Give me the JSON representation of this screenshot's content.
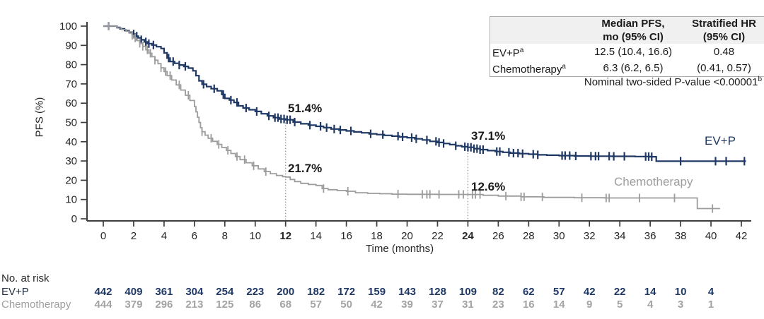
{
  "figure": {
    "y_axis_title": "PFS (%)",
    "x_axis_title": "Time (months)",
    "annotations": {
      "ev_12": "51.4%",
      "chemo_12": "21.7%",
      "ev_24": "37.1%",
      "chemo_24": "12.6%"
    },
    "curve_labels": {
      "ev_p": "EV+P",
      "chemo": "Chemotherapy"
    },
    "results_table": {
      "headers": [
        {
          "line1": "Median PFS,",
          "line2": "mo (95% CI)"
        },
        {
          "line1": "Stratified HR",
          "line2": "(95% CI)"
        }
      ],
      "rows": [
        {
          "label": "EV+P",
          "sup": "a",
          "median": "12.5 (10.4, 16.6)",
          "hr": "0.48"
        },
        {
          "label": "Chemotherapy",
          "sup": "a",
          "median": "6.3 (6.2, 6.5)",
          "hr": "(0.41, 0.57)"
        }
      ]
    },
    "pvalue_note": {
      "text": "Nominal two-sided P-value <0.00001",
      "sup": "b"
    },
    "at_risk_title": "No. at risk",
    "at_risk_row_labels": {
      "ev_p": "EV+P",
      "chemo": "Chemotherapy"
    }
  },
  "chart_data": {
    "type": "line",
    "subtype": "kaplan-meier-step",
    "title": "",
    "xlabel": "Time (months)",
    "ylabel": "PFS (%)",
    "xlim": [
      0,
      42
    ],
    "ylim": [
      0,
      100
    ],
    "xticks": [
      0,
      2,
      4,
      6,
      8,
      10,
      12,
      14,
      16,
      18,
      20,
      22,
      24,
      26,
      28,
      30,
      32,
      34,
      36,
      38,
      40,
      42
    ],
    "bold_xticks": [
      12,
      24
    ],
    "yticks": [
      0,
      10,
      20,
      30,
      40,
      50,
      60,
      70,
      80,
      90,
      100
    ],
    "grid": false,
    "reference_lines": [
      {
        "x": 12,
        "top_pct": 51.4
      },
      {
        "x": 24,
        "top_pct": 37.1
      }
    ],
    "series": [
      {
        "name": "EV+P",
        "color": "#1f3864",
        "stroke_width": 2.2,
        "landmarks": [
          {
            "x": 12,
            "label": "51.4%"
          },
          {
            "x": 24,
            "label": "37.1%"
          }
        ],
        "median_months": 12.5,
        "steps": [
          [
            0,
            100
          ],
          [
            0.9,
            99.3
          ],
          [
            1.1,
            98.6
          ],
          [
            1.4,
            97.7
          ],
          [
            1.7,
            96.8
          ],
          [
            1.9,
            95.9
          ],
          [
            2.1,
            94.8
          ],
          [
            2.3,
            93.9
          ],
          [
            2.5,
            92.9
          ],
          [
            2.7,
            91.8
          ],
          [
            2.9,
            90.9
          ],
          [
            3.2,
            90.2
          ],
          [
            3.5,
            89.3
          ],
          [
            3.8,
            88.4
          ],
          [
            4.0,
            86.1
          ],
          [
            4.2,
            83.4
          ],
          [
            4.4,
            81.6
          ],
          [
            4.7,
            80.7
          ],
          [
            5.0,
            79.8
          ],
          [
            5.3,
            79.1
          ],
          [
            5.6,
            78.2
          ],
          [
            5.9,
            76.8
          ],
          [
            6.1,
            74.3
          ],
          [
            6.3,
            71.6
          ],
          [
            6.5,
            69.8
          ],
          [
            6.8,
            68.6
          ],
          [
            7.1,
            67.5
          ],
          [
            7.5,
            66.4
          ],
          [
            7.8,
            64.5
          ],
          [
            8.0,
            62.5
          ],
          [
            8.3,
            61.6
          ],
          [
            8.6,
            60.4
          ],
          [
            8.9,
            58.6
          ],
          [
            9.2,
            57.5
          ],
          [
            9.6,
            56.6
          ],
          [
            10.0,
            55.7
          ],
          [
            10.4,
            54.5
          ],
          [
            10.8,
            53.4
          ],
          [
            11.2,
            52.5
          ],
          [
            11.6,
            51.8
          ],
          [
            12.0,
            51.4
          ],
          [
            12.5,
            50.2
          ],
          [
            13.0,
            49.3
          ],
          [
            13.5,
            48.6
          ],
          [
            14.0,
            48.0
          ],
          [
            14.5,
            47.3
          ],
          [
            15.0,
            46.6
          ],
          [
            15.5,
            46.1
          ],
          [
            16.0,
            45.6
          ],
          [
            16.5,
            45.1
          ],
          [
            17.0,
            44.6
          ],
          [
            17.5,
            44.1
          ],
          [
            18.0,
            43.7
          ],
          [
            18.5,
            43.3
          ],
          [
            19.0,
            42.9
          ],
          [
            19.5,
            42.5
          ],
          [
            20.0,
            42.1
          ],
          [
            20.5,
            41.5
          ],
          [
            21.0,
            40.9
          ],
          [
            21.5,
            40.2
          ],
          [
            22.0,
            39.6
          ],
          [
            22.4,
            39.1
          ],
          [
            22.8,
            38.5
          ],
          [
            23.2,
            37.9
          ],
          [
            23.6,
            37.4
          ],
          [
            24.0,
            37.1
          ],
          [
            24.4,
            36.4
          ],
          [
            24.8,
            35.9
          ],
          [
            25.3,
            35.4
          ],
          [
            25.8,
            34.9
          ],
          [
            26.3,
            34.5
          ],
          [
            26.8,
            34.1
          ],
          [
            27.4,
            33.8
          ],
          [
            28.0,
            33.5
          ],
          [
            28.6,
            33.2
          ],
          [
            29.2,
            33.0
          ],
          [
            30.0,
            32.8
          ],
          [
            31.0,
            32.6
          ],
          [
            32.0,
            32.5
          ],
          [
            33.5,
            32.4
          ],
          [
            35.0,
            32.3
          ],
          [
            36.0,
            32.2
          ],
          [
            36.4,
            29.9
          ],
          [
            42.3,
            29.9
          ]
        ],
        "censor_times": [
          0.35,
          2.0,
          2.2,
          2.5,
          2.8,
          3.0,
          3.3,
          4.3,
          4.6,
          5.0,
          5.4,
          6.6,
          7.3,
          7.9,
          8.4,
          8.8,
          9.4,
          10.1,
          10.9,
          11.3,
          11.5,
          11.7,
          11.9,
          12.1,
          12.3,
          12.6,
          13.6,
          14.3,
          14.7,
          15.2,
          15.6,
          16.3,
          17.6,
          18.4,
          19.4,
          19.7,
          20.3,
          20.6,
          21.3,
          21.9,
          22.1,
          22.4,
          23.2,
          23.8,
          24.0,
          24.2,
          24.4,
          24.6,
          24.8,
          25.0,
          25.9,
          26.1,
          26.7,
          27.0,
          27.3,
          27.6,
          28.3,
          28.6,
          30.2,
          30.4,
          30.7,
          31.1,
          32.1,
          32.4,
          32.6,
          33.3,
          33.6,
          34.3,
          35.7,
          35.9,
          36.1,
          38.0,
          40.3,
          41.0,
          42.2
        ]
      },
      {
        "name": "Chemotherapy",
        "color": "#9c9c9c",
        "stroke_width": 1.8,
        "landmarks": [
          {
            "x": 12,
            "label": "21.7%"
          },
          {
            "x": 24,
            "label": "12.6%"
          }
        ],
        "median_months": 6.3,
        "steps": [
          [
            0,
            100
          ],
          [
            0.9,
            99.0
          ],
          [
            1.2,
            98.2
          ],
          [
            1.5,
            97.3
          ],
          [
            1.7,
            96.4
          ],
          [
            1.9,
            95.2
          ],
          [
            2.0,
            93.9
          ],
          [
            2.2,
            92.5
          ],
          [
            2.4,
            91.1
          ],
          [
            2.6,
            89.5
          ],
          [
            2.8,
            87.7
          ],
          [
            3.0,
            85.9
          ],
          [
            3.2,
            84.1
          ],
          [
            3.4,
            82.3
          ],
          [
            3.6,
            80.5
          ],
          [
            3.8,
            78.4
          ],
          [
            4.0,
            76.4
          ],
          [
            4.2,
            74.3
          ],
          [
            4.5,
            72.0
          ],
          [
            4.8,
            69.5
          ],
          [
            5.1,
            66.8
          ],
          [
            5.4,
            64.1
          ],
          [
            5.7,
            61.4
          ],
          [
            6.0,
            58.2
          ],
          [
            6.1,
            55.5
          ],
          [
            6.2,
            52.7
          ],
          [
            6.3,
            50.0
          ],
          [
            6.4,
            47.3
          ],
          [
            6.5,
            45.2
          ],
          [
            6.7,
            43.4
          ],
          [
            6.9,
            41.8
          ],
          [
            7.2,
            40.2
          ],
          [
            7.5,
            38.6
          ],
          [
            7.8,
            37.0
          ],
          [
            8.1,
            35.5
          ],
          [
            8.4,
            33.9
          ],
          [
            8.7,
            32.3
          ],
          [
            9.0,
            30.7
          ],
          [
            9.4,
            29.1
          ],
          [
            9.8,
            27.5
          ],
          [
            10.2,
            25.9
          ],
          [
            10.6,
            24.5
          ],
          [
            11.0,
            23.4
          ],
          [
            11.4,
            22.5
          ],
          [
            11.8,
            21.9
          ],
          [
            12.0,
            21.7
          ],
          [
            12.3,
            20.4
          ],
          [
            12.6,
            19.3
          ],
          [
            13.0,
            18.4
          ],
          [
            13.5,
            17.8
          ],
          [
            14.0,
            17.3
          ],
          [
            14.4,
            15.7
          ],
          [
            14.8,
            15.1
          ],
          [
            15.4,
            14.7
          ],
          [
            16.0,
            14.3
          ],
          [
            16.6,
            13.5
          ],
          [
            17.4,
            13.2
          ],
          [
            18.2,
            13.0
          ],
          [
            19.0,
            12.8
          ],
          [
            20.0,
            12.7
          ],
          [
            22.0,
            12.65
          ],
          [
            24.0,
            12.6
          ],
          [
            25.0,
            12.2
          ],
          [
            26.0,
            11.8
          ],
          [
            27.5,
            11.4
          ],
          [
            29.0,
            11.1
          ],
          [
            31.0,
            10.9
          ],
          [
            33.0,
            10.8
          ],
          [
            39.0,
            10.8
          ],
          [
            39.1,
            5.3
          ],
          [
            40.6,
            5.3
          ]
        ],
        "censor_times": [
          0.35,
          1.9,
          2.1,
          2.4,
          2.6,
          2.9,
          3.1,
          3.4,
          3.8,
          4.1,
          4.4,
          5.0,
          5.6,
          6.5,
          7.1,
          7.6,
          8.2,
          8.8,
          9.3,
          9.9,
          10.7,
          14.5,
          16.1,
          19.4,
          21.0,
          21.3,
          21.5,
          22.1,
          23.4,
          23.7,
          24.3,
          24.5,
          24.8,
          26.5,
          27.5,
          27.7,
          28.9,
          31.5,
          33.1,
          33.3,
          35.3,
          37.6,
          40.1
        ]
      }
    ],
    "at_risk": {
      "times": [
        0,
        2,
        4,
        6,
        8,
        10,
        12,
        14,
        16,
        18,
        20,
        22,
        24,
        26,
        28,
        30,
        32,
        34,
        36,
        38,
        40
      ],
      "rows": [
        {
          "name": "EV+P",
          "color": "#1f3864",
          "values": [
            442,
            409,
            361,
            304,
            254,
            223,
            200,
            182,
            172,
            159,
            143,
            128,
            109,
            82,
            62,
            57,
            42,
            22,
            14,
            10,
            4
          ]
        },
        {
          "name": "Chemotherapy",
          "color": "#a3a3a3",
          "values": [
            444,
            379,
            296,
            213,
            125,
            86,
            68,
            57,
            50,
            42,
            39,
            37,
            31,
            23,
            16,
            14,
            9,
            5,
            4,
            3,
            1
          ]
        }
      ]
    },
    "results_summary": {
      "EV+P": {
        "median_pfs_mo": "12.5 (10.4, 16.6)",
        "stratified_hr": "0.48"
      },
      "Chemotherapy": {
        "median_pfs_mo": "6.3 (6.2, 6.5)",
        "stratified_hr": "(0.41, 0.57)"
      },
      "p_value": "<0.00001"
    },
    "colors": {
      "ev_p": "#1f3864",
      "chemo": "#9c9c9c",
      "axis": "#3d3d3d",
      "ref_line": "#8c8c8c"
    }
  }
}
